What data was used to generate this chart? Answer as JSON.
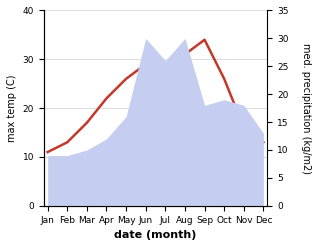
{
  "months": [
    "Jan",
    "Feb",
    "Mar",
    "Apr",
    "May",
    "Jun",
    "Jul",
    "Aug",
    "Sep",
    "Oct",
    "Nov",
    "Dec"
  ],
  "temperature": [
    11,
    13,
    17,
    22,
    26,
    29,
    29,
    31,
    34,
    26,
    16,
    13
  ],
  "precipitation": [
    9,
    9,
    10,
    12,
    16,
    30,
    26,
    30,
    18,
    19,
    18,
    13
  ],
  "temp_color": "#c0392b",
  "precip_color_fill": "#c5cef0",
  "temp_ylim": [
    0,
    40
  ],
  "precip_ylim": [
    0,
    35
  ],
  "xlabel": "date (month)",
  "ylabel_left": "max temp (C)",
  "ylabel_right": "med. precipitation (kg/m2)",
  "bg_color": "#ffffff",
  "grid_color": "#d0d0d0",
  "label_fontsize": 7,
  "tick_fontsize": 6.5
}
